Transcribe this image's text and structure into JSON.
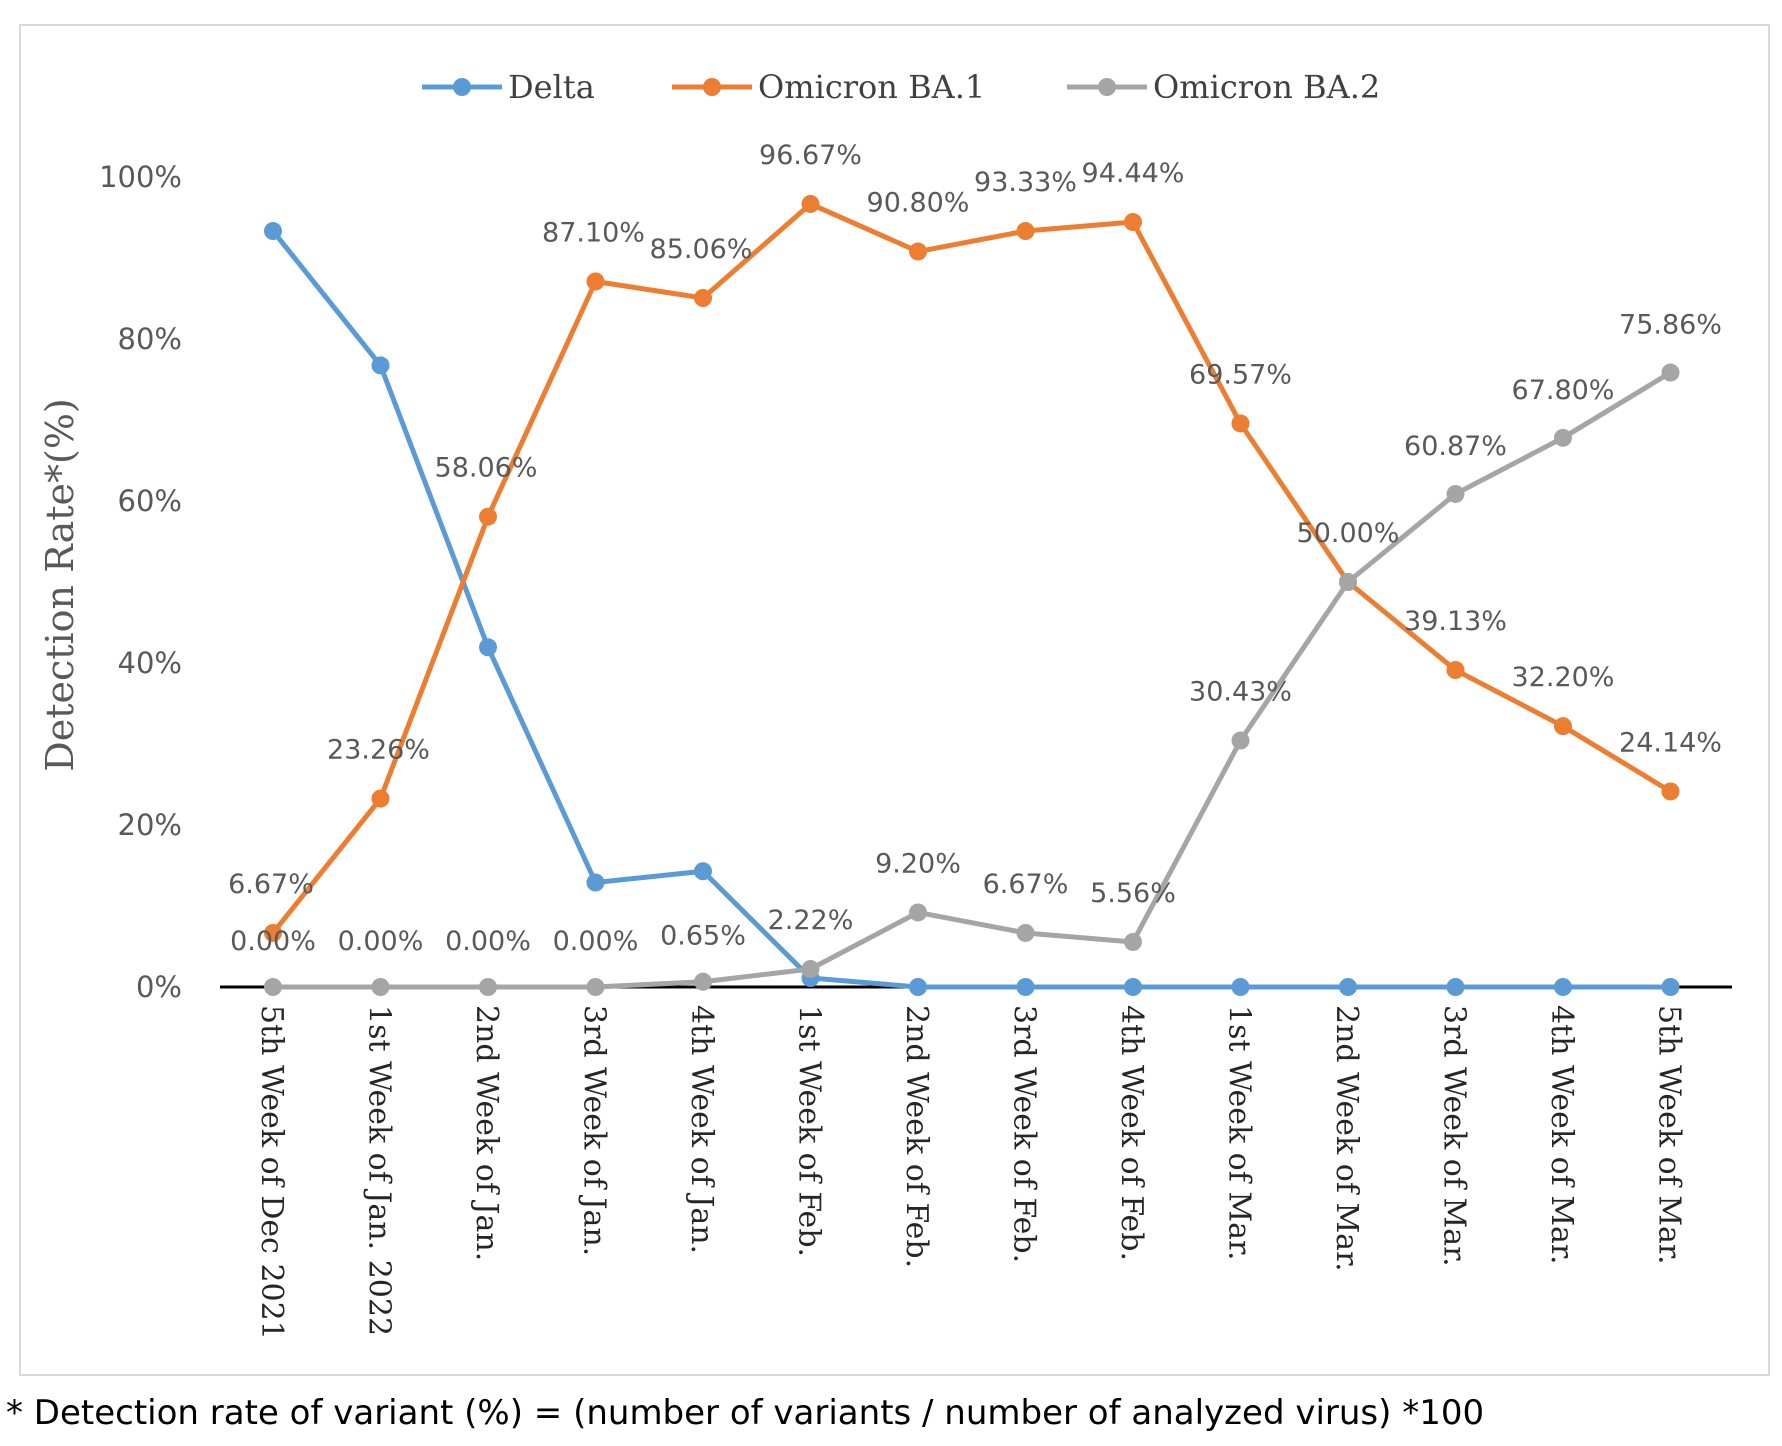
{
  "chart_data": {
    "type": "line",
    "title": "",
    "ylabel": "Detection Rate*(%)",
    "xlabel": "",
    "ylim": [
      0,
      100
    ],
    "yticks": [
      0,
      20,
      40,
      60,
      80,
      100
    ],
    "ytick_labels": [
      "0%",
      "20%",
      "40%",
      "60%",
      "80%",
      "100%"
    ],
    "legend_position": "top",
    "grid": false,
    "categories": [
      "5th Week of Dec 2021",
      "1st Week of Jan. 2022",
      "2nd Week of Jan.",
      "3rd Week of Jan.",
      "4th Week of Jan.",
      "1st Week of Feb.",
      "2nd Week of Feb.",
      "3rd Week of Feb.",
      "4th Week of Feb.",
      "1st Week of Mar.",
      "2nd Week of Mar.",
      "3rd Week of Mar.",
      "4th Week of Mar.",
      "5th Week of Mar."
    ],
    "series": [
      {
        "name": "Delta",
        "color": "#5b9bd5",
        "values": [
          93.33,
          76.74,
          41.94,
          12.9,
          14.29,
          1.11,
          0,
          0,
          0,
          0,
          0,
          0,
          0,
          0
        ],
        "labels": [
          null,
          null,
          null,
          null,
          null,
          null,
          null,
          null,
          null,
          null,
          null,
          null,
          null,
          null
        ]
      },
      {
        "name": "Omicron BA.1",
        "color": "#ed7d31",
        "values": [
          6.67,
          23.26,
          58.06,
          87.1,
          85.06,
          96.67,
          90.8,
          93.33,
          94.44,
          69.57,
          50.0,
          39.13,
          32.2,
          24.14
        ],
        "labels": [
          "6.67%",
          "23.26%",
          "58.06%",
          "87.10%",
          "85.06%",
          "96.67%",
          "90.80%",
          "93.33%",
          "94.44%",
          "69.57%",
          "50.00%",
          "39.13%",
          "32.20%",
          "24.14%"
        ]
      },
      {
        "name": "Omicron BA.2",
        "color": "#a5a5a5",
        "values": [
          0,
          0,
          0,
          0,
          0.65,
          2.22,
          9.2,
          6.67,
          5.56,
          30.43,
          50.0,
          60.87,
          67.8,
          75.86
        ],
        "labels": [
          "0.00%",
          "0.00%",
          "0.00%",
          "0.00%",
          "0.65%",
          "2.22%",
          "9.20%",
          "6.67%",
          "5.56%",
          "30.43%",
          null,
          "60.87%",
          "67.80%",
          "75.86%"
        ]
      }
    ]
  },
  "footnote": "* Detection rate of variant (%) = (number of variants / number of analyzed virus) *100"
}
